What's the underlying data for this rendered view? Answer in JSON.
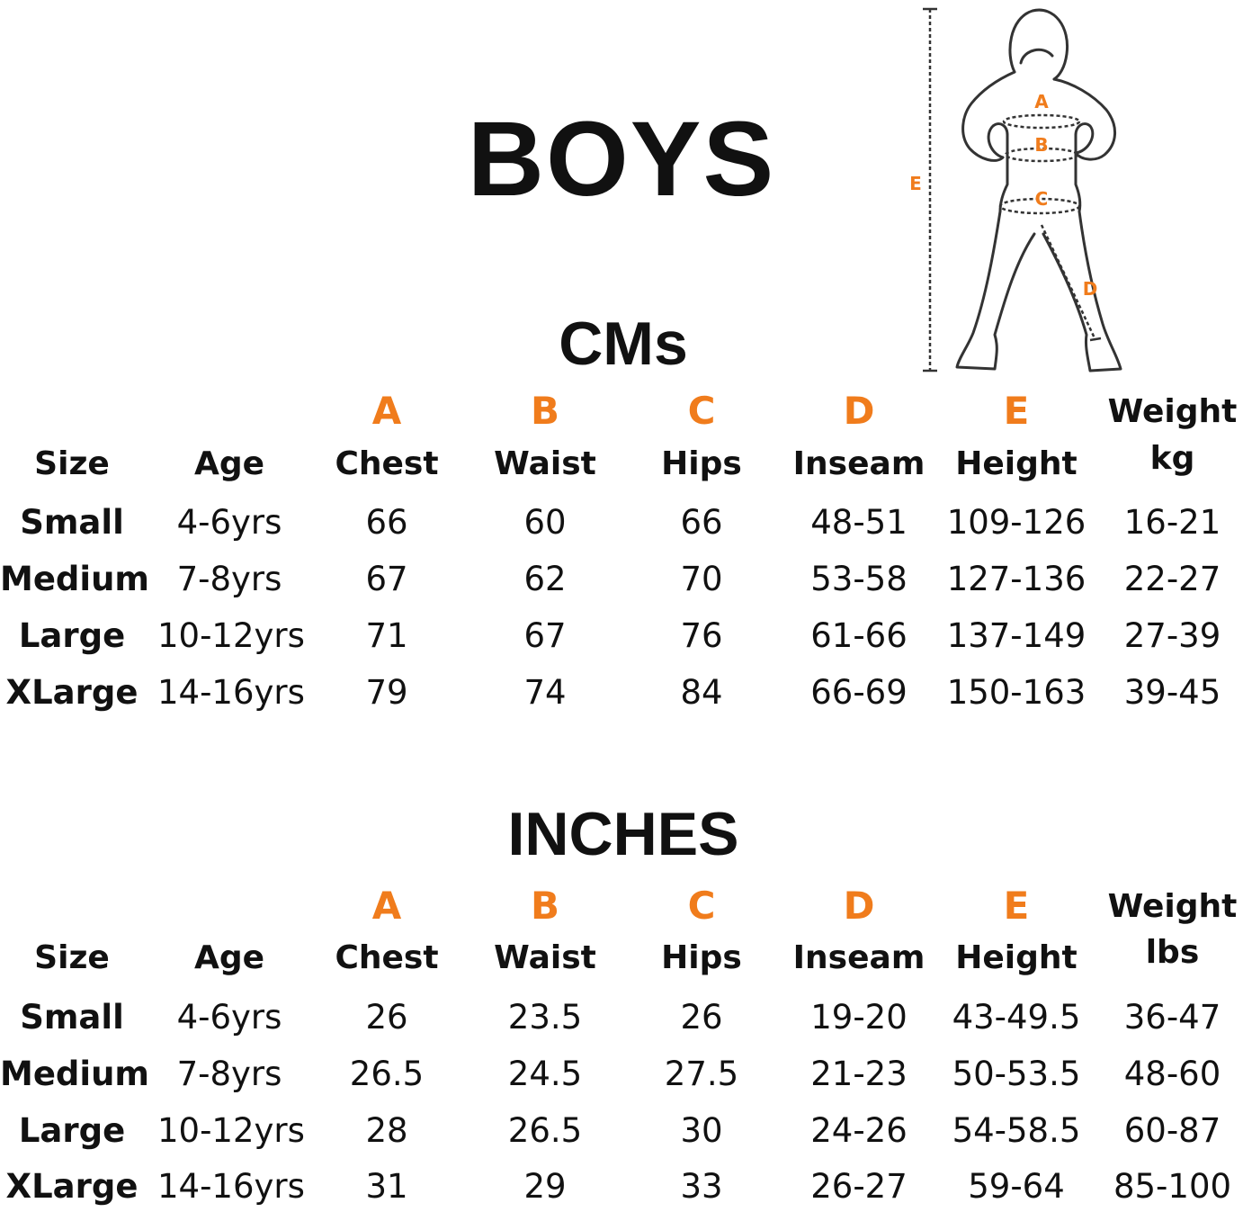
{
  "title": "BOYS",
  "accent_color": "#f07c1c",
  "figure": {
    "icon": "child-measurement-figure",
    "labels": [
      "A",
      "B",
      "C",
      "D",
      "E"
    ]
  },
  "tables": [
    {
      "section_title": "CMs",
      "letters": [
        "A",
        "B",
        "C",
        "D",
        "E"
      ],
      "headers": [
        "Size",
        "Age",
        "Chest",
        "Waist",
        "Hips",
        "Inseam",
        "Height",
        "Weight",
        "kg"
      ],
      "rows": [
        [
          "Small",
          "4-6yrs",
          "66",
          "60",
          "66",
          "48-51",
          "109-126",
          "16-21"
        ],
        [
          "Medium",
          "7-8yrs",
          "67",
          "62",
          "70",
          "53-58",
          "127-136",
          "22-27"
        ],
        [
          "Large",
          "10-12yrs",
          "71",
          "67",
          "76",
          "61-66",
          "137-149",
          "27-39"
        ],
        [
          "XLarge",
          "14-16yrs",
          "79",
          "74",
          "84",
          "66-69",
          "150-163",
          "39-45"
        ]
      ]
    },
    {
      "section_title": "INCHES",
      "letters": [
        "A",
        "B",
        "C",
        "D",
        "E"
      ],
      "headers": [
        "Size",
        "Age",
        "Chest",
        "Waist",
        "Hips",
        "Inseam",
        "Height",
        "Weight",
        "lbs"
      ],
      "rows": [
        [
          "Small",
          "4-6yrs",
          "26",
          "23.5",
          "26",
          "19-20",
          "43-49.5",
          "36-47"
        ],
        [
          "Medium",
          "7-8yrs",
          "26.5",
          "24.5",
          "27.5",
          "21-23",
          "50-53.5",
          "48-60"
        ],
        [
          "Large",
          "10-12yrs",
          "28",
          "26.5",
          "30",
          "24-26",
          "54-58.5",
          "60-87"
        ],
        [
          "XLarge",
          "14-16yrs",
          "31",
          "29",
          "33",
          "26-27",
          "59-64",
          "85-100"
        ]
      ]
    }
  ]
}
